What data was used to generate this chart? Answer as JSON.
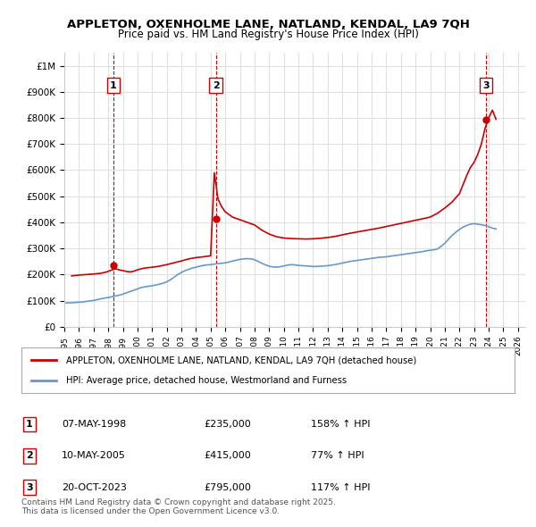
{
  "title": "APPLETON, OXENHOLME LANE, NATLAND, KENDAL, LA9 7QH",
  "subtitle": "Price paid vs. HM Land Registry's House Price Index (HPI)",
  "ylabel": "",
  "xlim_start": 1995.0,
  "xlim_end": 2026.5,
  "ylim_min": 0,
  "ylim_max": 1050000,
  "yticks": [
    0,
    100000,
    200000,
    300000,
    400000,
    500000,
    600000,
    700000,
    800000,
    900000,
    1000000
  ],
  "ytick_labels": [
    "£0",
    "£100K",
    "£200K",
    "£300K",
    "£400K",
    "£500K",
    "£600K",
    "£700K",
    "£800K",
    "£900K",
    "£1M"
  ],
  "sales": [
    {
      "date_x": 1998.35,
      "price": 235000,
      "label": "1"
    },
    {
      "date_x": 2005.36,
      "price": 415000,
      "label": "2"
    },
    {
      "date_x": 2023.8,
      "price": 795000,
      "label": "3"
    }
  ],
  "sale_vline_color": "#cc0000",
  "sale_marker_color": "#cc0000",
  "hpi_line_color": "#6699cc",
  "price_line_color": "#cc0000",
  "legend_entries": [
    "APPLETON, OXENHOLME LANE, NATLAND, KENDAL, LA9 7QH (detached house)",
    "HPI: Average price, detached house, Westmorland and Furness"
  ],
  "table_rows": [
    {
      "num": "1",
      "date": "07-MAY-1998",
      "price": "£235,000",
      "hpi": "158% ↑ HPI"
    },
    {
      "num": "2",
      "date": "10-MAY-2005",
      "price": "£415,000",
      "hpi": "77% ↑ HPI"
    },
    {
      "num": "3",
      "date": "20-OCT-2023",
      "price": "£795,000",
      "hpi": "117% ↑ HPI"
    }
  ],
  "footer": "Contains HM Land Registry data © Crown copyright and database right 2025.\nThis data is licensed under the Open Government Licence v3.0.",
  "bg_color": "#ffffff",
  "grid_color": "#e0e0e0",
  "hpi_data_x": [
    1995.0,
    1995.25,
    1995.5,
    1995.75,
    1996.0,
    1996.25,
    1996.5,
    1996.75,
    1997.0,
    1997.25,
    1997.5,
    1997.75,
    1998.0,
    1998.25,
    1998.5,
    1998.75,
    1999.0,
    1999.25,
    1999.5,
    1999.75,
    2000.0,
    2000.25,
    2000.5,
    2000.75,
    2001.0,
    2001.25,
    2001.5,
    2001.75,
    2002.0,
    2002.25,
    2002.5,
    2002.75,
    2003.0,
    2003.25,
    2003.5,
    2003.75,
    2004.0,
    2004.25,
    2004.5,
    2004.75,
    2005.0,
    2005.25,
    2005.5,
    2005.75,
    2006.0,
    2006.25,
    2006.5,
    2006.75,
    2007.0,
    2007.25,
    2007.5,
    2007.75,
    2008.0,
    2008.25,
    2008.5,
    2008.75,
    2009.0,
    2009.25,
    2009.5,
    2009.75,
    2010.0,
    2010.25,
    2010.5,
    2010.75,
    2011.0,
    2011.25,
    2011.5,
    2011.75,
    2012.0,
    2012.25,
    2012.5,
    2012.75,
    2013.0,
    2013.25,
    2013.5,
    2013.75,
    2014.0,
    2014.25,
    2014.5,
    2014.75,
    2015.0,
    2015.25,
    2015.5,
    2015.75,
    2016.0,
    2016.25,
    2016.5,
    2016.75,
    2017.0,
    2017.25,
    2017.5,
    2017.75,
    2018.0,
    2018.25,
    2018.5,
    2018.75,
    2019.0,
    2019.25,
    2019.5,
    2019.75,
    2020.0,
    2020.25,
    2020.5,
    2020.75,
    2021.0,
    2021.25,
    2021.5,
    2021.75,
    2022.0,
    2022.25,
    2022.5,
    2022.75,
    2023.0,
    2023.25,
    2023.5,
    2023.75,
    2024.0,
    2024.25,
    2024.5
  ],
  "hpi_data_y": [
    91000,
    91500,
    92000,
    93000,
    94000,
    95000,
    97000,
    99000,
    101000,
    104000,
    107000,
    110000,
    112000,
    115000,
    118000,
    121000,
    125000,
    130000,
    135000,
    140000,
    145000,
    150000,
    153000,
    155000,
    157000,
    160000,
    163000,
    167000,
    172000,
    180000,
    190000,
    200000,
    208000,
    215000,
    220000,
    225000,
    228000,
    232000,
    235000,
    237000,
    238000,
    240000,
    242000,
    243000,
    245000,
    248000,
    252000,
    255000,
    258000,
    260000,
    261000,
    260000,
    257000,
    250000,
    243000,
    237000,
    232000,
    229000,
    228000,
    230000,
    233000,
    236000,
    238000,
    237000,
    235000,
    234000,
    233000,
    232000,
    231000,
    231000,
    232000,
    233000,
    234000,
    236000,
    238000,
    241000,
    244000,
    247000,
    250000,
    252000,
    254000,
    256000,
    258000,
    260000,
    262000,
    264000,
    266000,
    267000,
    268000,
    270000,
    272000,
    274000,
    276000,
    278000,
    280000,
    282000,
    284000,
    286000,
    288000,
    291000,
    293000,
    295000,
    298000,
    308000,
    320000,
    335000,
    350000,
    362000,
    373000,
    382000,
    388000,
    393000,
    395000,
    393000,
    391000,
    388000,
    383000,
    378000,
    375000
  ],
  "price_data_x": [
    1995.5,
    1996.0,
    1996.5,
    1997.0,
    1997.5,
    1997.75,
    1998.0,
    1998.25,
    1998.5,
    1998.75,
    1999.0,
    1999.25,
    1999.5,
    1999.75,
    2000.0,
    2000.25,
    2000.5,
    2001.0,
    2001.5,
    2002.0,
    2002.5,
    2003.0,
    2003.5,
    2004.0,
    2004.5,
    2005.0,
    2005.25,
    2005.5,
    2005.75,
    2006.0,
    2006.25,
    2006.5,
    2006.75,
    2007.0,
    2007.5,
    2008.0,
    2008.5,
    2009.0,
    2009.5,
    2010.0,
    2010.5,
    2011.0,
    2011.5,
    2012.0,
    2012.5,
    2013.0,
    2013.5,
    2014.0,
    2014.5,
    2015.0,
    2015.5,
    2016.0,
    2016.5,
    2017.0,
    2017.5,
    2018.0,
    2018.5,
    2019.0,
    2019.5,
    2020.0,
    2020.5,
    2021.0,
    2021.5,
    2022.0,
    2022.25,
    2022.5,
    2022.75,
    2023.0,
    2023.25,
    2023.5,
    2023.75,
    2024.0,
    2024.25,
    2024.5
  ],
  "price_data_y": [
    195000,
    198000,
    200000,
    202000,
    205000,
    208000,
    212000,
    218000,
    222000,
    218000,
    215000,
    212000,
    210000,
    213000,
    218000,
    222000,
    225000,
    228000,
    232000,
    238000,
    245000,
    252000,
    260000,
    265000,
    268000,
    272000,
    590000,
    490000,
    460000,
    440000,
    430000,
    420000,
    415000,
    410000,
    400000,
    390000,
    370000,
    355000,
    345000,
    340000,
    338000,
    337000,
    336000,
    337000,
    339000,
    342000,
    346000,
    352000,
    358000,
    363000,
    368000,
    373000,
    378000,
    384000,
    390000,
    396000,
    402000,
    408000,
    414000,
    420000,
    435000,
    455000,
    478000,
    510000,
    545000,
    580000,
    610000,
    630000,
    660000,
    700000,
    760000,
    800000,
    830000,
    795000
  ]
}
